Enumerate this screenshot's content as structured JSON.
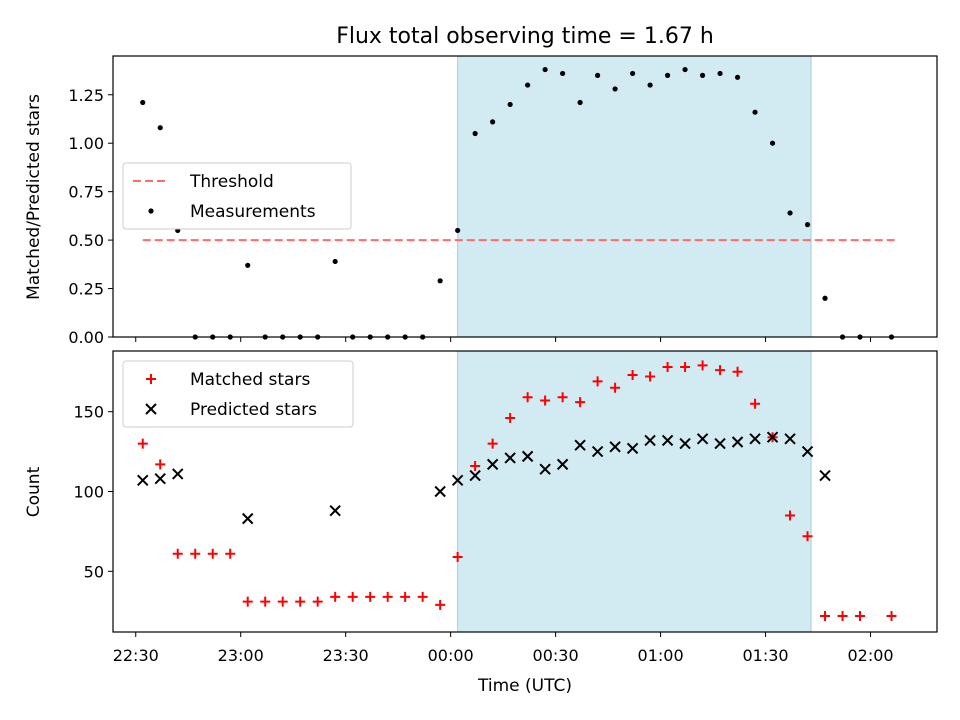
{
  "figure": {
    "title": "Flux total observing time = 1.67 h",
    "xlabel": "Time (UTC)"
  },
  "chart_data": [
    {
      "type": "scatter",
      "panel": "top",
      "ylabel": "Matched/Predicted stars",
      "ylim": [
        0,
        1.45
      ],
      "yticks": [
        0.0,
        0.25,
        0.5,
        0.75,
        1.0,
        1.25
      ],
      "ytick_labels": [
        "0.00",
        "0.25",
        "0.50",
        "0.75",
        "1.00",
        "1.25"
      ],
      "legend_position": "center-left",
      "shaded_region": {
        "x_start": "00:02",
        "x_end": "01:43",
        "color": "#add8e6"
      },
      "threshold": {
        "name": "Threshold",
        "value": 0.5,
        "x_start": "22:32",
        "x_end": "02:07",
        "color": "#ff6b6b"
      },
      "series": [
        {
          "name": "Measurements",
          "marker": "dot",
          "color": "#000000",
          "x": [
            "22:32",
            "22:37",
            "22:42",
            "22:47",
            "22:52",
            "22:57",
            "23:02",
            "23:07",
            "23:12",
            "23:17",
            "23:22",
            "23:27",
            "23:32",
            "23:37",
            "23:42",
            "23:47",
            "23:52",
            "23:57",
            "00:02",
            "00:07",
            "00:12",
            "00:17",
            "00:22",
            "00:27",
            "00:32",
            "00:37",
            "00:42",
            "00:47",
            "00:52",
            "00:57",
            "01:02",
            "01:07",
            "01:12",
            "01:17",
            "01:22",
            "01:27",
            "01:32",
            "01:37",
            "01:42",
            "01:47",
            "01:52",
            "01:57",
            "02:06"
          ],
          "y": [
            1.21,
            1.08,
            0.55,
            0.0,
            0.0,
            0.0,
            0.37,
            0.0,
            0.0,
            0.0,
            0.0,
            0.39,
            0.0,
            0.0,
            0.0,
            0.0,
            0.0,
            0.29,
            0.55,
            1.05,
            1.11,
            1.2,
            1.3,
            1.38,
            1.36,
            1.21,
            1.35,
            1.28,
            1.36,
            1.3,
            1.35,
            1.38,
            1.35,
            1.36,
            1.34,
            1.16,
            1.0,
            0.64,
            0.58,
            0.2,
            0.0,
            0.0,
            0.0
          ]
        }
      ]
    },
    {
      "type": "scatter",
      "panel": "bottom",
      "ylabel": "Count",
      "ylim": [
        12,
        188
      ],
      "yticks": [
        50,
        100,
        150
      ],
      "ytick_labels": [
        "50",
        "100",
        "150"
      ],
      "xticks": [
        "22:30",
        "23:00",
        "23:30",
        "00:00",
        "00:30",
        "01:00",
        "01:30",
        "02:00"
      ],
      "legend_position": "top-left",
      "shaded_region": {
        "x_start": "00:02",
        "x_end": "01:43",
        "color": "#add8e6"
      },
      "series": [
        {
          "name": "Matched stars",
          "marker": "plus",
          "color": "#ff0000",
          "x": [
            "22:32",
            "22:37",
            "22:42",
            "22:47",
            "22:52",
            "22:57",
            "23:02",
            "23:07",
            "23:12",
            "23:17",
            "23:22",
            "23:27",
            "23:32",
            "23:37",
            "23:42",
            "23:47",
            "23:52",
            "23:57",
            "00:02",
            "00:07",
            "00:12",
            "00:17",
            "00:22",
            "00:27",
            "00:32",
            "00:37",
            "00:42",
            "00:47",
            "00:52",
            "00:57",
            "01:02",
            "01:07",
            "01:12",
            "01:17",
            "01:22",
            "01:27",
            "01:32",
            "01:37",
            "01:42",
            "01:47",
            "01:52",
            "01:57",
            "02:06"
          ],
          "y": [
            130,
            117,
            61,
            61,
            61,
            61,
            31,
            31,
            31,
            31,
            31,
            34,
            34,
            34,
            34,
            34,
            34,
            29,
            59,
            116,
            130,
            146,
            159,
            157,
            159,
            156,
            169,
            165,
            173,
            172,
            178,
            178,
            179,
            176,
            175,
            155,
            134,
            85,
            72,
            22,
            22,
            22,
            22
          ]
        },
        {
          "name": "Predicted stars",
          "marker": "x",
          "color": "#000000",
          "x": [
            "22:32",
            "22:37",
            "22:42",
            "23:02",
            "23:27",
            "23:57",
            "00:02",
            "00:07",
            "00:12",
            "00:17",
            "00:22",
            "00:27",
            "00:32",
            "00:37",
            "00:42",
            "00:47",
            "00:52",
            "00:57",
            "01:02",
            "01:07",
            "01:12",
            "01:17",
            "01:22",
            "01:27",
            "01:32",
            "01:37",
            "01:42",
            "01:47"
          ],
          "y": [
            107,
            108,
            111,
            83,
            88,
            100,
            107,
            110,
            117,
            121,
            122,
            114,
            117,
            129,
            125,
            128,
            127,
            132,
            132,
            130,
            133,
            130,
            131,
            133,
            134,
            133,
            125,
            110
          ]
        }
      ]
    }
  ]
}
